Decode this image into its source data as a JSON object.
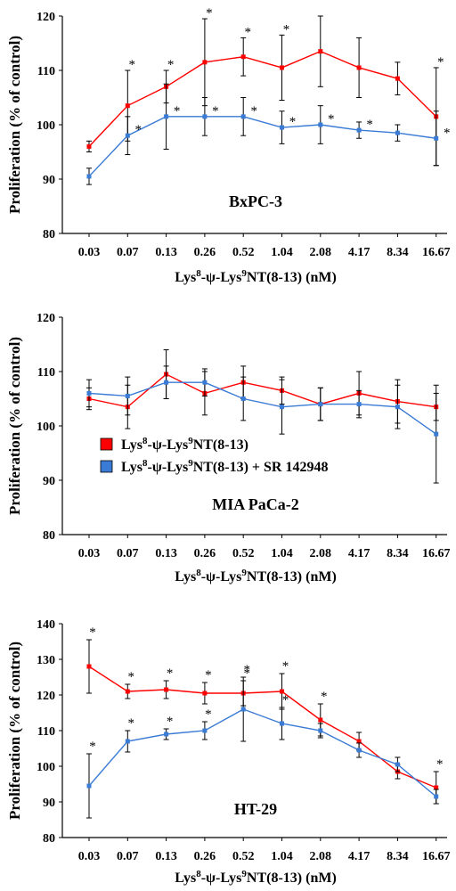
{
  "colors": {
    "series_1": "#ff0000",
    "series_2": "#3a7bd5",
    "axis": "#000000",
    "error_bar": "#000000"
  },
  "legend": {
    "items": [
      {
        "name_parts": [
          "Lys",
          "8",
          "-ψ-Lys",
          "9",
          "NT(8-13)"
        ],
        "color": "#ff0000"
      },
      {
        "name_parts": [
          "Lys",
          "8",
          "-ψ-Lys",
          "9",
          "NT(8-13) + SR 142948"
        ],
        "color": "#3a7bd5"
      }
    ]
  },
  "chart_data": [
    {
      "type": "line",
      "title": "BxPC-3",
      "ylabel": "Proliferation (% of control)",
      "xlabel_parts": [
        "Lys",
        "8",
        "-ψ-Lys",
        "9",
        "NT(8-13) (nM)"
      ],
      "categories": [
        "0.03",
        "0.07",
        "0.13",
        "0.26",
        "0.52",
        "1.04",
        "2.08",
        "4.17",
        "8.34",
        "16.67"
      ],
      "ylim": [
        80,
        120
      ],
      "yticks": [
        80,
        90,
        100,
        110,
        120
      ],
      "grid": false,
      "series": [
        {
          "values": [
            96,
            103.5,
            107,
            111.5,
            112.5,
            110.5,
            113.5,
            110.5,
            108.5,
            101.5
          ],
          "errors": [
            1,
            6.5,
            3,
            8,
            3.5,
            6,
            6.5,
            5.5,
            3,
            9
          ],
          "stars": [
            false,
            true,
            true,
            true,
            true,
            true,
            false,
            false,
            false,
            true
          ]
        },
        {
          "values": [
            90.5,
            98,
            101.5,
            101.5,
            101.5,
            99.5,
            100,
            99,
            98.5,
            97.5
          ],
          "errors": [
            1.5,
            3.5,
            6,
            3.5,
            3.5,
            3,
            3.5,
            1.5,
            1.5,
            5
          ],
          "stars": [
            false,
            true,
            true,
            true,
            true,
            true,
            true,
            true,
            false,
            true
          ]
        }
      ]
    },
    {
      "type": "line",
      "title": "MIA PaCa-2",
      "ylabel": "Proliferation (% of control)",
      "xlabel_parts": [
        "Lys",
        "8",
        "-ψ-Lys",
        "9",
        "NT(8-13) (nM)"
      ],
      "categories": [
        "0.03",
        "0.07",
        "0.13",
        "0.26",
        "0.52",
        "1.04",
        "2.08",
        "4.17",
        "8.34",
        "16.67"
      ],
      "ylim": [
        80,
        120
      ],
      "yticks": [
        80,
        90,
        100,
        110,
        120
      ],
      "grid": false,
      "series": [
        {
          "values": [
            105,
            103.5,
            109.5,
            106,
            108,
            106.5,
            104,
            106,
            104.5,
            103.5
          ],
          "errors": [
            2,
            4,
            4.5,
            4,
            3,
            2.5,
            3,
            4,
            4,
            2.5
          ],
          "stars": [
            false,
            false,
            false,
            false,
            false,
            false,
            false,
            false,
            false,
            false
          ]
        },
        {
          "values": [
            106,
            105.5,
            108,
            108,
            105,
            103.5,
            104,
            104,
            103.5,
            98.5
          ],
          "errors": [
            2.5,
            3.5,
            3,
            2.5,
            4,
            5,
            3,
            2.5,
            4,
            9
          ],
          "stars": [
            false,
            false,
            false,
            false,
            false,
            false,
            false,
            false,
            false,
            false
          ]
        }
      ]
    },
    {
      "type": "line",
      "title": "HT-29",
      "ylabel": "Proliferation (% of control)",
      "xlabel_parts": [
        "Lys",
        "8",
        "-ψ-Lys",
        "9",
        "NT(8-13) (nM)"
      ],
      "categories": [
        "0.03",
        "0.07",
        "0.13",
        "0.26",
        "0.52",
        "1.04",
        "2.08",
        "4.17",
        "8.34",
        "16.67"
      ],
      "ylim": [
        80,
        140
      ],
      "yticks": [
        80,
        90,
        100,
        110,
        120,
        130,
        140
      ],
      "grid": false,
      "series": [
        {
          "values": [
            128,
            121,
            121.5,
            120.5,
            120.5,
            121,
            113,
            107,
            98.5,
            94
          ],
          "errors": [
            7.5,
            2,
            2.5,
            3,
            3.5,
            5,
            4.5,
            2.5,
            2,
            4.5
          ],
          "stars": [
            true,
            true,
            true,
            true,
            true,
            true,
            true,
            false,
            false,
            true
          ]
        },
        {
          "values": [
            94.5,
            107,
            109,
            110,
            116,
            112,
            110,
            104.5,
            100.5,
            91.5
          ],
          "errors": [
            9,
            3,
            1.5,
            2.5,
            9,
            4.5,
            2,
            2,
            2,
            2
          ],
          "stars": [
            true,
            true,
            true,
            true,
            true,
            true,
            false,
            false,
            false,
            false
          ]
        }
      ]
    }
  ]
}
